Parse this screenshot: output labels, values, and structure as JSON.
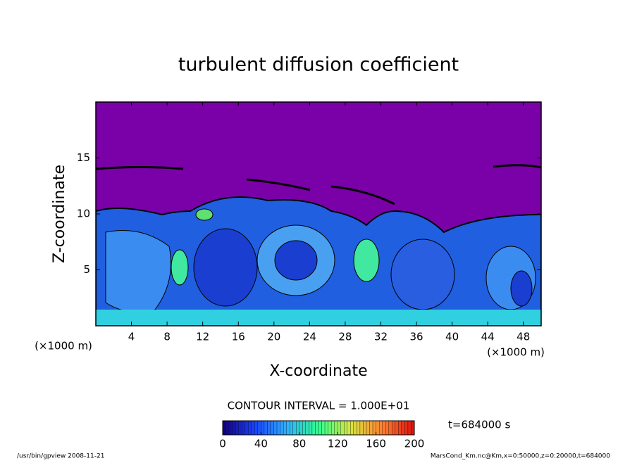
{
  "chart_data": {
    "type": "contour",
    "title": "turbulent diffusion coefficient",
    "xlabel": "X-coordinate",
    "ylabel": "Z-coordinate",
    "x_unit": "(×1000 m)",
    "xlim": [
      0,
      50
    ],
    "xticks": [
      4,
      8,
      12,
      16,
      20,
      24,
      28,
      32,
      36,
      40,
      44,
      48
    ],
    "ylim": [
      0,
      20
    ],
    "yticks": [
      5,
      10,
      15
    ],
    "contour_interval": "CONTOUR INTERVAL = 1.000E+01",
    "colorbar": {
      "lim": [
        0,
        200
      ],
      "ticks": [
        0,
        40,
        80,
        120,
        160,
        200
      ],
      "colors": [
        "#12007a",
        "#1a40ff",
        "#2fb0ff",
        "#30ff90",
        "#d8e840",
        "#ff8030",
        "#e01010"
      ]
    },
    "time_label": "t=684000 s",
    "footer_left": "/usr/bin/gpview   2008-11-21",
    "footer_right": "MarsCond_Km.nc@Km,x=0:50000,z=0:20000,t=684000"
  }
}
